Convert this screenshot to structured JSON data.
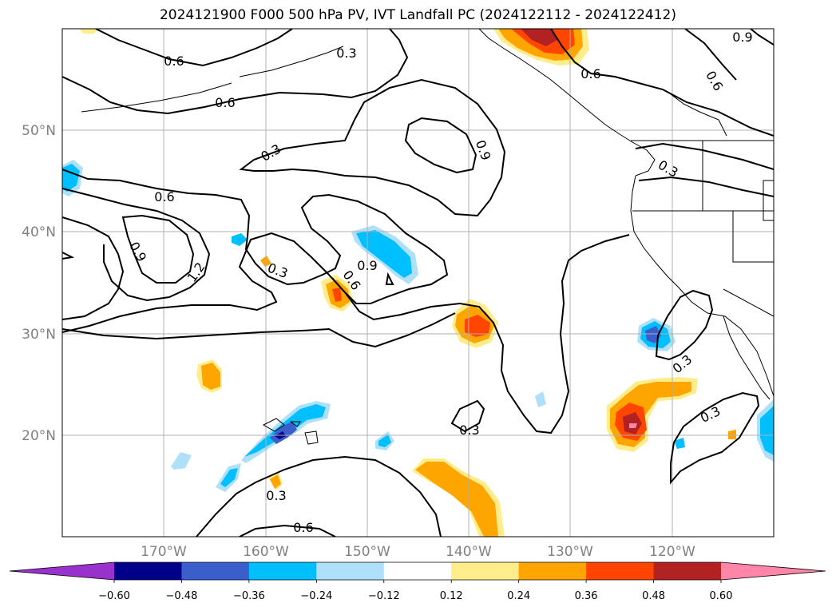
{
  "title": "2024121900 F000 500 hPa PV, IVT Landfall PC (2024122112 - 2024122412)",
  "longitude_ticks": [
    "170°W",
    "160°W",
    "150°W",
    "140°W",
    "130°W",
    "120°W"
  ],
  "latitude_ticks": [
    "50°N",
    "40°N",
    "30°N",
    "20°N"
  ],
  "colorbar": {
    "tick_labels": [
      "−0.60",
      "−0.48",
      "−0.36",
      "−0.24",
      "−0.12",
      "0.12",
      "0.24",
      "0.36",
      "0.48",
      "0.60"
    ],
    "colors": [
      "#9932cc",
      "#00008b",
      "#3a5fcd",
      "#00bfff",
      "#afe0fa",
      "#ffffff",
      "#ffec8b",
      "#ffa500",
      "#ff4500",
      "#b22222",
      "#ff85a9"
    ]
  },
  "contour_labels": [
    "0.6",
    "0.3",
    "0.6",
    "0.9",
    "0.6",
    "0.6",
    "0.3",
    "0.9",
    "0.3",
    "0.6",
    "0.9",
    "1.2",
    "0.3",
    "0.9",
    "0.6",
    "0.3",
    "0.3",
    "0.3",
    "0.3",
    "0.6"
  ]
}
